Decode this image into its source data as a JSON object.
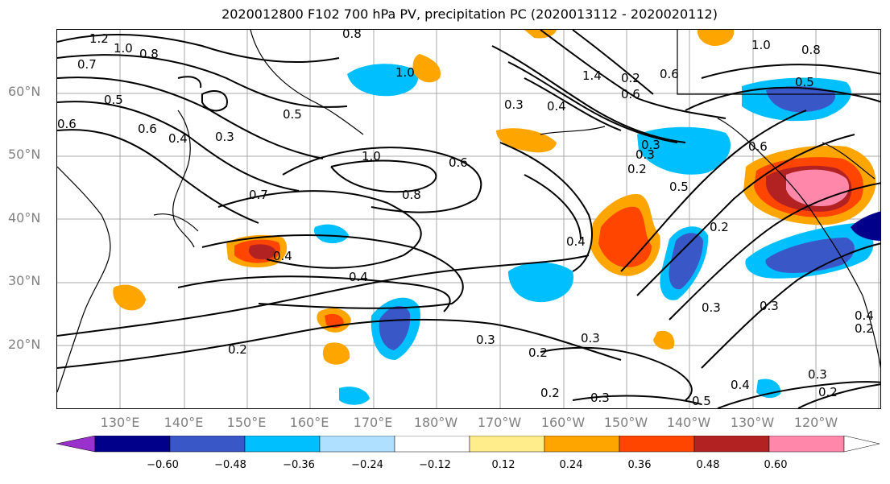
{
  "title": "2020012800 F102 700 hPa PV, precipitation PC (2020013112 - 2020020112)",
  "map": {
    "lat_labels": [
      "60°N",
      "50°N",
      "40°N",
      "30°N",
      "20°N"
    ],
    "lon_labels": [
      "130°E",
      "140°E",
      "150°E",
      "160°E",
      "170°E",
      "180°W",
      "170°W",
      "160°W",
      "150°W",
      "140°W",
      "130°W",
      "120°W"
    ],
    "contour_labels": [
      "1.2",
      "1.0",
      "0.8",
      "0.7",
      "0.5",
      "0.6",
      "0.6",
      "0.4",
      "0.3",
      "0.5",
      "0.7",
      "1.0",
      "0.8",
      "0.6",
      "0.4",
      "0.4",
      "0.2",
      "0.3",
      "0.2",
      "0.3",
      "0.2",
      "0.3",
      "0.4",
      "0.5",
      "0.2",
      "0.3",
      "0.3",
      "0.2",
      "0.5",
      "0.2",
      "0.3",
      "0.4",
      "0.3",
      "0.2",
      "0.6",
      "1.4",
      "0.2",
      "1.0",
      "0.6",
      "0.5",
      "0.8",
      "0.6",
      "0.3",
      "0.4",
      "1.0",
      "0.8",
      "0.4",
      "0.3"
    ]
  },
  "colorbar": {
    "ticks": [
      "−0.60",
      "−0.48",
      "−0.36",
      "−0.24",
      "−0.12",
      "0.12",
      "0.24",
      "0.36",
      "0.48",
      "0.60"
    ],
    "colors": [
      "#9932cc",
      "#00008b",
      "#3a57c8",
      "#00bfff",
      "#b0e0ff",
      "#ffffff",
      "#ffec8b",
      "#ffa500",
      "#ff4500",
      "#b22222",
      "#ff88aa",
      "#ffffff"
    ]
  }
}
